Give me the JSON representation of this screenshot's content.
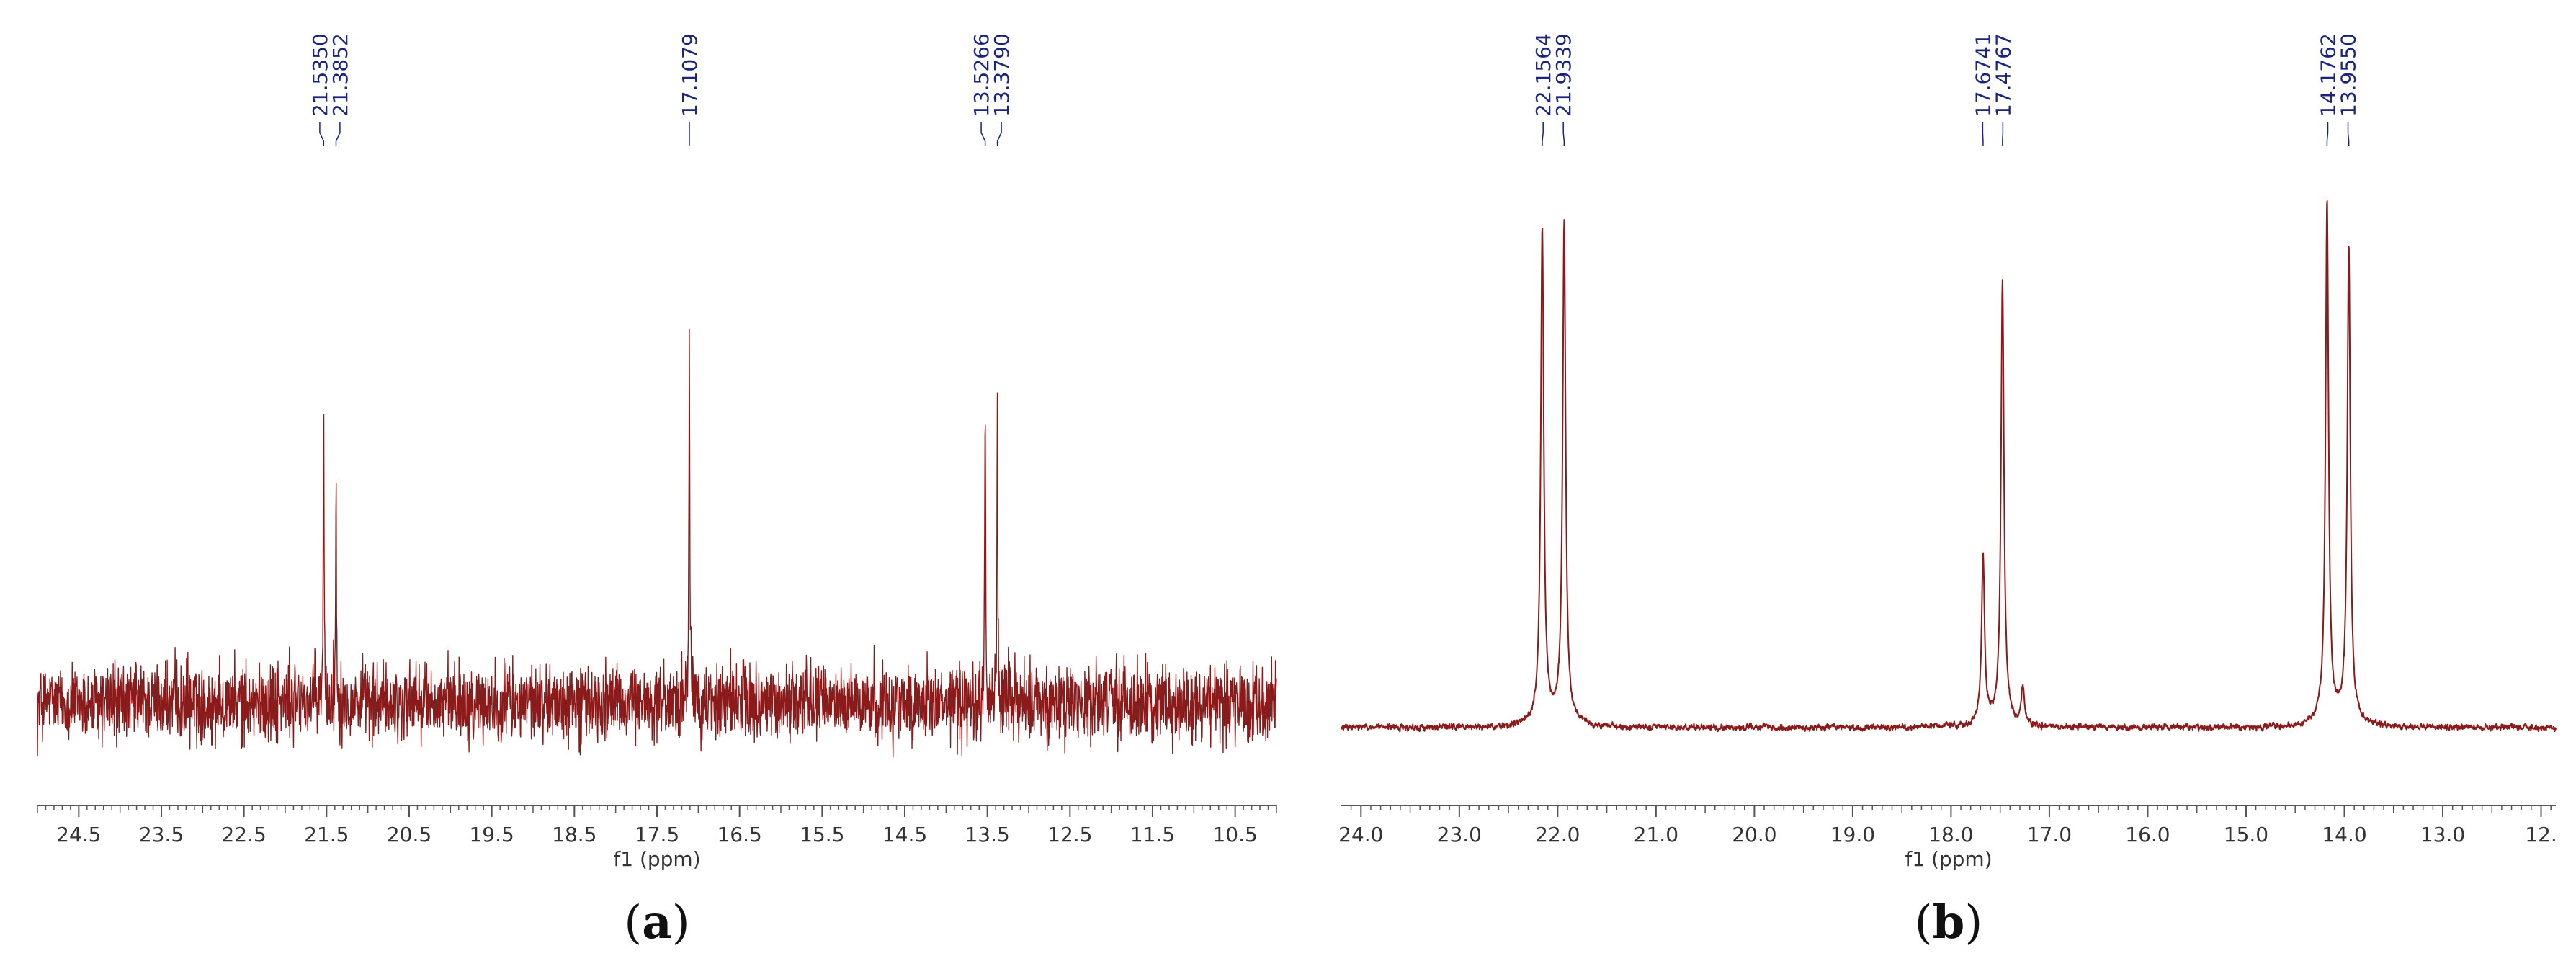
{
  "colors": {
    "spectrum": "#8b1a1a",
    "peak_label": "#1a237e",
    "axis": "#555555",
    "text": "#333333"
  },
  "chart_data": [
    {
      "type": "line",
      "panel_label": "a",
      "title": "",
      "xlabel": "f1 (ppm)",
      "ylabel": "",
      "x_reversed": true,
      "xlim": [
        25.0,
        10.0
      ],
      "ylim": [
        -0.18,
        1.05
      ],
      "tick_labels": [
        "24.5",
        "23.5",
        "22.5",
        "21.5",
        "20.5",
        "19.5",
        "18.5",
        "17.5",
        "16.5",
        "15.5",
        "14.5",
        "13.5",
        "12.5",
        "11.5",
        "10.5"
      ],
      "noise": {
        "baseline": 0.0,
        "amplitude": 0.075
      },
      "peak_labels": [
        {
          "text": "21.5350",
          "ppm": 21.535
        },
        {
          "text": "21.3852",
          "ppm": 21.3852
        },
        {
          "text": "17.1079",
          "ppm": 17.1079
        },
        {
          "text": "13.5266",
          "ppm": 13.5266
        },
        {
          "text": "13.3790",
          "ppm": 13.379
        }
      ],
      "peaks": [
        {
          "ppm": 21.535,
          "height": 0.66
        },
        {
          "ppm": 21.3852,
          "height": 0.5
        },
        {
          "ppm": 17.1079,
          "height": 0.86
        },
        {
          "ppm": 13.5266,
          "height": 0.75
        },
        {
          "ppm": 13.379,
          "height": 0.67
        }
      ]
    },
    {
      "type": "line",
      "panel_label": "b",
      "title": "",
      "xlabel": "f1 (ppm)",
      "ylabel": "",
      "x_reversed": true,
      "xlim": [
        24.2,
        11.85
      ],
      "ylim": [
        -0.06,
        1.0
      ],
      "tick_labels": [
        "24.0",
        "23.0",
        "22.0",
        "21.0",
        "20.0",
        "19.0",
        "18.0",
        "17.0",
        "16.0",
        "15.0",
        "14.0",
        "13.0",
        "12."
      ],
      "noise": {
        "baseline": 0.0,
        "amplitude": 0.008
      },
      "peak_labels": [
        {
          "text": "22.1564",
          "ppm": 22.1564
        },
        {
          "text": "21.9339",
          "ppm": 21.9339
        },
        {
          "text": "17.6741",
          "ppm": 17.6741
        },
        {
          "text": "17.4767",
          "ppm": 17.4767
        },
        {
          "text": "14.1762",
          "ppm": 14.1762
        },
        {
          "text": "13.9550",
          "ppm": 13.955
        }
      ],
      "peaks": [
        {
          "ppm": 22.1564,
          "height": 0.91
        },
        {
          "ppm": 21.9339,
          "height": 0.92
        },
        {
          "ppm": 17.6741,
          "height": 0.31
        },
        {
          "ppm": 17.4767,
          "height": 0.81
        },
        {
          "ppm": 17.27,
          "height": 0.07
        },
        {
          "ppm": 14.1762,
          "height": 0.96
        },
        {
          "ppm": 13.955,
          "height": 0.88
        }
      ]
    }
  ]
}
